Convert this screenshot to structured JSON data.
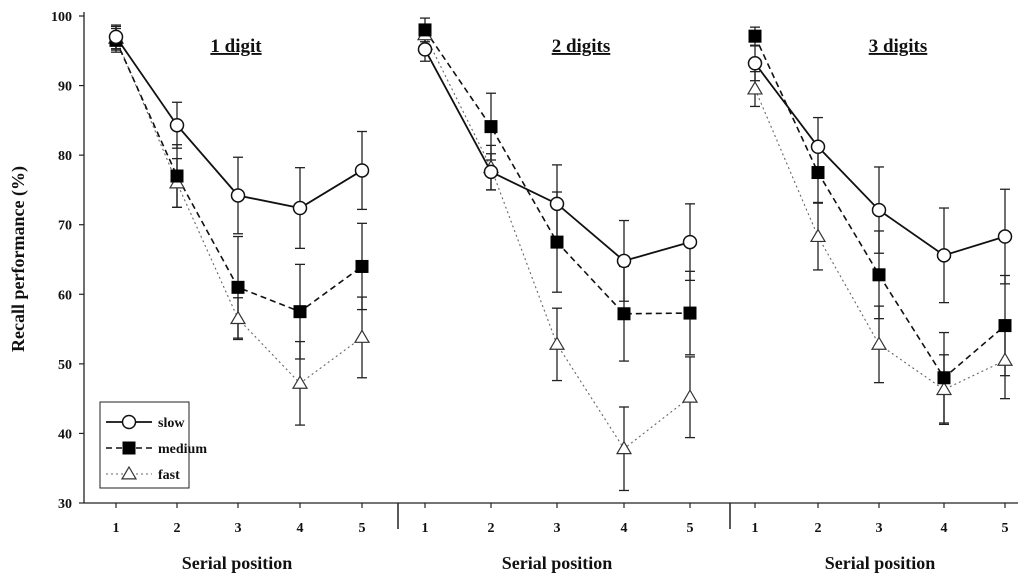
{
  "chart_data": {
    "type": "line",
    "ylabel": "Recall performance (%)",
    "ylim": [
      30,
      100
    ],
    "yticks": [
      30,
      40,
      50,
      60,
      70,
      80,
      90,
      100
    ],
    "legend": {
      "placement": "bottom-left of first panel",
      "entries": [
        "slow",
        "medium",
        "fast"
      ]
    },
    "panels": [
      {
        "title": "1 digit",
        "xlabel": "Serial position",
        "categories": [
          "1",
          "2",
          "3",
          "4",
          "5"
        ],
        "series": [
          {
            "name": "slow",
            "values": [
              97,
              84.3,
              74.2,
              72.4,
              77.8
            ],
            "errors": [
              1.7,
              3.3,
              5.5,
              5.8,
              5.6
            ]
          },
          {
            "name": "medium",
            "values": [
              96.5,
              77,
              61,
              57.5,
              64
            ],
            "errors": [
              1.7,
              4.5,
              7.3,
              6.8,
              6.2
            ]
          },
          {
            "name": "fast",
            "values": [
              96.8,
              76,
              56.5,
              47.2,
              53.8
            ],
            "errors": [
              1.7,
              3.5,
              3,
              6,
              5.8
            ]
          }
        ]
      },
      {
        "title": "2 digits",
        "xlabel": "Serial position",
        "categories": [
          "1",
          "2",
          "3",
          "4",
          "5"
        ],
        "series": [
          {
            "name": "slow",
            "values": [
              95.2,
              77.6,
              73,
              64.8,
              67.5
            ],
            "errors": [
              1.7,
              2.6,
              5.6,
              5.8,
              5.5
            ]
          },
          {
            "name": "medium",
            "values": [
              98,
              84.1,
              67.5,
              57.2,
              57.3
            ],
            "errors": [
              1.7,
              4.8,
              7.2,
              6.8,
              6
            ]
          },
          {
            "name": "fast",
            "values": [
              97.3,
              78.2,
              52.8,
              37.8,
              45.2
            ],
            "errors": [
              1.5,
              3.2,
              5.2,
              6,
              5.8
            ]
          }
        ]
      },
      {
        "title": "3 digits",
        "xlabel": "Serial position",
        "categories": [
          "1",
          "2",
          "3",
          "4",
          "5"
        ],
        "series": [
          {
            "name": "slow",
            "values": [
              93.2,
              81.2,
              72.1,
              65.6,
              68.3
            ],
            "errors": [
              2.5,
              4.2,
              6.2,
              6.8,
              6.8
            ]
          },
          {
            "name": "medium",
            "values": [
              97.1,
              77.5,
              62.8,
              48,
              55.5
            ],
            "errors": [
              1.3,
              4.3,
              6.3,
              6.5,
              7.2
            ]
          },
          {
            "name": "fast",
            "values": [
              89.5,
              68.3,
              52.8,
              46.3,
              50.5
            ],
            "errors": [
              2.5,
              4.8,
              5.5,
              5,
              5.5
            ]
          }
        ]
      }
    ]
  }
}
